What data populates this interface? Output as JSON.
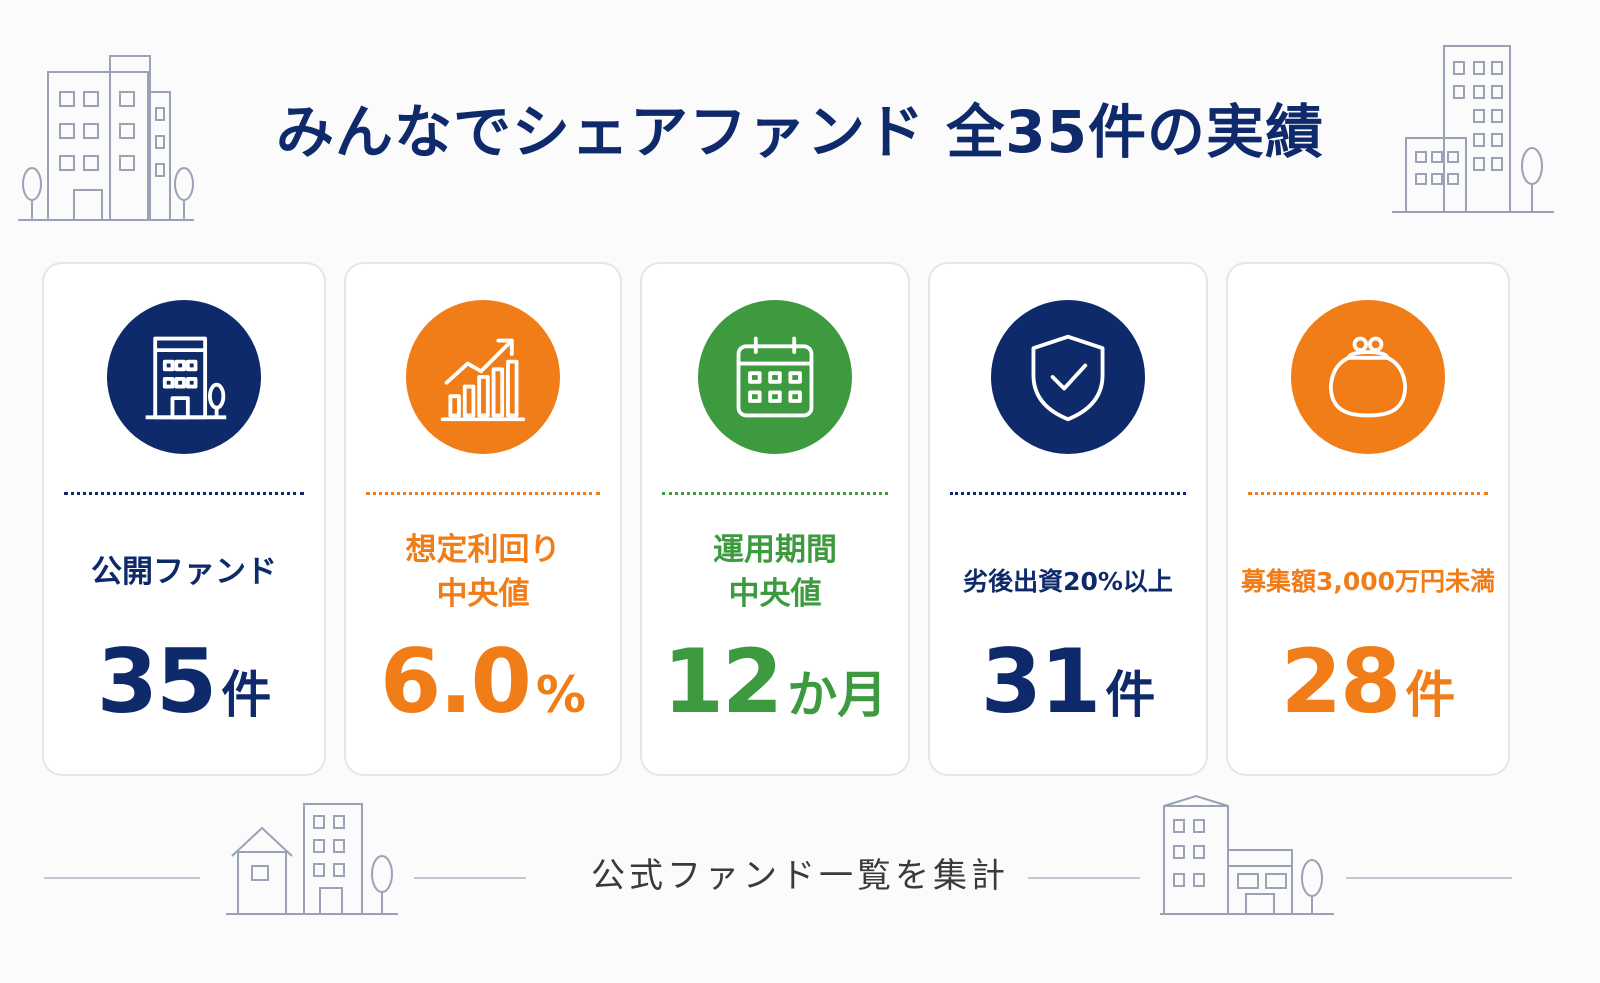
{
  "title": "みんなでシェアファンド 全35件の実績",
  "colors": {
    "navy": "#0f2a6b",
    "orange": "#f07d18",
    "green": "#3d9a3f"
  },
  "cards": [
    {
      "icon": "office-building-icon",
      "label_lines": [
        "公開ファンド"
      ],
      "value": "35",
      "unit": "件",
      "color": "#0f2a6b"
    },
    {
      "icon": "growth-chart-icon",
      "label_lines": [
        "想定利回り",
        "中央値"
      ],
      "value": "6.0",
      "unit": "%",
      "color": "#f07d18"
    },
    {
      "icon": "calendar-icon",
      "label_lines": [
        "運用期間",
        "中央値"
      ],
      "value": "12",
      "unit": "か月",
      "color": "#3d9a3f"
    },
    {
      "icon": "shield-check-icon",
      "label_lines": [
        "劣後出資20%以上"
      ],
      "value": "31",
      "unit": "件",
      "color": "#0f2a6b"
    },
    {
      "icon": "coin-purse-icon",
      "label_lines": [
        "募集額3,000万円未満"
      ],
      "value": "28",
      "unit": "件",
      "color": "#f07d18"
    }
  ],
  "footer": "公式ファンド一覧を集計"
}
